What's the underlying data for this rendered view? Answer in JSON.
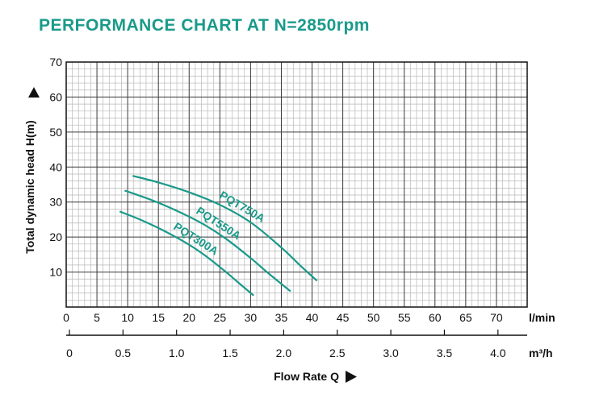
{
  "chart_data": {
    "type": "line",
    "title": "PERFORMANCE CHART AT N=2850rpm",
    "ylabel": "Total dynamic head H(m)",
    "xlabel": "Flow Rate Q",
    "x_unit": "l/min",
    "x2_unit": "m³/h",
    "ylim": [
      0,
      70
    ],
    "xlim": [
      0,
      75
    ],
    "y_ticks": [
      "10",
      "20",
      "30",
      "40",
      "50",
      "60",
      "70"
    ],
    "x_ticks": [
      "0",
      "5",
      "10",
      "15",
      "20",
      "25",
      "30",
      "35",
      "40",
      "45",
      "50",
      "55",
      "60",
      "65",
      "70"
    ],
    "x2_ticks": [
      "0",
      "0.5",
      "1.0",
      "1.5",
      "2.0",
      "2.5",
      "3.0",
      "3.5",
      "4.0"
    ],
    "grid": true,
    "series": [
      {
        "name": "PQT750A",
        "x": [
          10.8,
          15,
          20,
          25,
          30,
          35,
          38,
          40.8
        ],
        "values": [
          37.5,
          35.6,
          32.8,
          29.2,
          24.2,
          17.0,
          12.0,
          7.5
        ]
      },
      {
        "name": "PQT550A",
        "x": [
          9.5,
          14,
          18,
          22,
          26,
          30,
          33,
          36.5
        ],
        "values": [
          33.3,
          30.5,
          27.5,
          24.0,
          19.5,
          14.0,
          9.5,
          4.5
        ]
      },
      {
        "name": "PQT300A",
        "x": [
          8.7,
          12,
          16,
          20,
          23,
          26,
          28,
          30.5
        ],
        "values": [
          27.3,
          25.0,
          21.7,
          17.8,
          14.2,
          10.0,
          7.0,
          3.3
        ]
      }
    ]
  },
  "colors": {
    "title": "#1a9a8a",
    "curve": "#1a9a8a",
    "grid_major": "#3a3a3a",
    "grid_minor": "#b8b8b8"
  }
}
